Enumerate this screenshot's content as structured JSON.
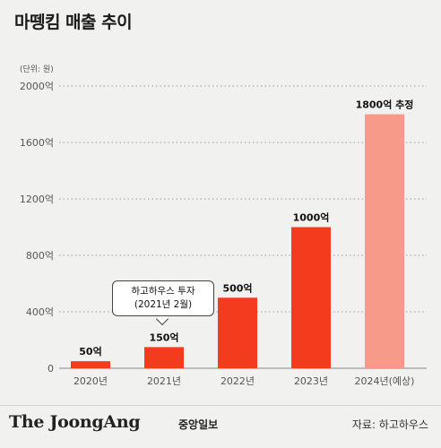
{
  "title": "마뗑킴 매출 추이",
  "unit_note": "(단위: 원)",
  "callout": {
    "line1": "하고하우스 투자",
    "line2": "(2021년 2월)"
  },
  "footer": {
    "logo": "The JoongAng",
    "logo_kr": "중앙일보",
    "source": "자료: 하고하우스"
  },
  "colors": {
    "bar": "#f23c1d",
    "bar_estimate": "#f79a8a"
  },
  "chart_data": {
    "type": "bar",
    "title": "마뗑킴 매출 추이",
    "xlabel": "",
    "ylabel": "",
    "categories": [
      "2020년",
      "2021년",
      "2022년",
      "2023년",
      "2024년(예상)"
    ],
    "values": [
      50,
      150,
      500,
      1000,
      1800
    ],
    "data_labels": [
      "50억",
      "150억",
      "500억",
      "1000억",
      "1800억 추정"
    ],
    "estimate_flags": [
      false,
      false,
      false,
      false,
      true
    ],
    "yticks": [
      0,
      400,
      800,
      1200,
      1600,
      2000
    ],
    "ytick_labels": [
      "0",
      "400억",
      "800억",
      "1200억",
      "1600억",
      "2000억"
    ],
    "ylim": [
      0,
      2000
    ],
    "grid": true,
    "legend": "none"
  }
}
